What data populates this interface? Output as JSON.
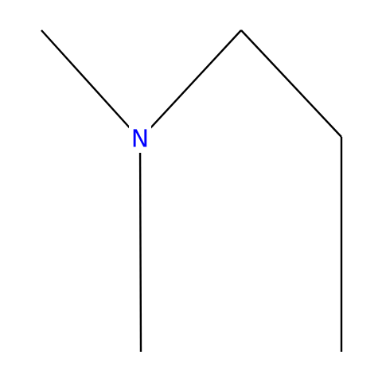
{
  "molecule": {
    "atoms": [
      {
        "symbol": "",
        "color": "#000000"
      },
      {
        "symbol": "N",
        "color": "#0000ff"
      },
      {
        "symbol": "",
        "color": "#000000"
      },
      {
        "symbol": "",
        "color": "#000000"
      },
      {
        "symbol": "",
        "color": "#000000"
      },
      {
        "symbol": "",
        "color": "#000000"
      }
    ],
    "bonds": [
      {
        "from": 0,
        "to": 1,
        "order": 1
      },
      {
        "from": 1,
        "to": 2,
        "order": 1
      },
      {
        "from": 1,
        "to": 3,
        "order": 1
      },
      {
        "from": 3,
        "to": 4,
        "order": 1
      },
      {
        "from": 4,
        "to": 5,
        "order": 1
      }
    ],
    "nitrogen_label": "N",
    "nitrogen_color": "#0000ff",
    "bond_color": "#000000"
  }
}
